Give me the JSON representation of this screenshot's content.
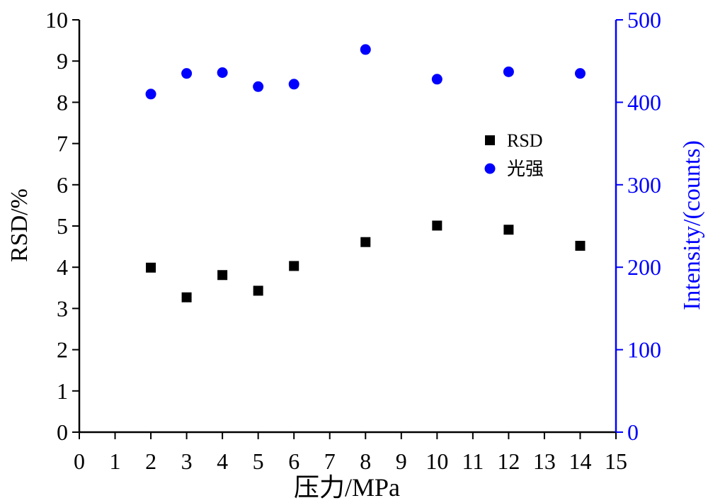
{
  "chart_data": {
    "type": "scatter",
    "xlabel": "压力/MPa",
    "ylabel_left": "RSD/%",
    "ylabel_right": "Intensity/(counts)",
    "xlim": [
      0,
      15
    ],
    "ylim_left": [
      0,
      10
    ],
    "ylim_right": [
      0,
      500
    ],
    "x_ticks": [
      "0",
      "1",
      "2",
      "3",
      "4",
      "5",
      "6",
      "7",
      "8",
      "9",
      "10",
      "11",
      "12",
      "13",
      "14",
      "15"
    ],
    "y_ticks_left": [
      "0",
      "1",
      "2",
      "3",
      "4",
      "5",
      "6",
      "7",
      "8",
      "9",
      "10"
    ],
    "y_ticks_right": [
      "0",
      "100",
      "200",
      "300",
      "400",
      "500"
    ],
    "grid": false,
    "legend_position": "upper-right",
    "series": [
      {
        "name": "RSD",
        "axis": "left",
        "marker": "square",
        "color": "#000000",
        "x": [
          2,
          3,
          4,
          5,
          6,
          8,
          10,
          12,
          14
        ],
        "y": [
          3.99,
          3.27,
          3.81,
          3.43,
          4.03,
          4.61,
          5.01,
          4.91,
          4.52
        ]
      },
      {
        "name": "光强",
        "axis": "right",
        "marker": "circle",
        "color": "#0000ff",
        "x": [
          2,
          3,
          4,
          5,
          6,
          8,
          10,
          12,
          14
        ],
        "y": [
          410,
          435,
          436,
          419,
          422,
          464,
          428,
          437,
          435
        ]
      }
    ]
  },
  "colors": {
    "left_axis": "#000000",
    "right_axis": "#0000ff"
  }
}
